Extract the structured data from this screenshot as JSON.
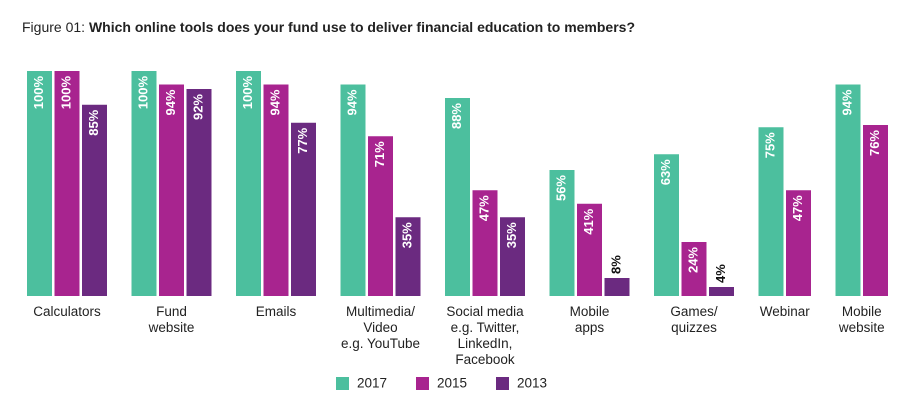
{
  "chart_data": {
    "type": "bar",
    "title_prefix": "Figure 01:",
    "title": "Which online tools does your fund use to deliver financial education to members?",
    "categories": [
      "Calculators",
      "Fund\nwebsite",
      "Emails",
      "Multimedia/\nVideo\ne.g. YouTube",
      "Social media\ne.g. Twitter,\nLinkedIn,\nFacebook",
      "Mobile\napps",
      "Games/\nquizzes",
      "Webinar",
      "Mobile\nwebsite"
    ],
    "series": [
      {
        "name": "2017",
        "color": "#4cbf9e",
        "values": [
          100,
          100,
          100,
          94,
          88,
          56,
          63,
          75,
          94
        ],
        "value_labels": [
          "100%",
          "100%",
          "100%",
          "94%",
          "88%",
          "56%",
          "63%",
          "75%",
          "94%"
        ]
      },
      {
        "name": "2015",
        "color": "#a8248f",
        "values": [
          100,
          94,
          94,
          71,
          47,
          41,
          24,
          47,
          76
        ],
        "value_labels": [
          "100%",
          "94%",
          "94%",
          "71%",
          "47%",
          "41%",
          "24%",
          "47%",
          "76%"
        ]
      },
      {
        "name": "2013",
        "color": "#6b2a80",
        "values": [
          85,
          92,
          77,
          35,
          35,
          8,
          4,
          null,
          null
        ],
        "value_labels": [
          "85%",
          "92%",
          "77%",
          "35%",
          "35%",
          "8%",
          "4%",
          null,
          null
        ]
      }
    ],
    "ylim": [
      0,
      100
    ]
  }
}
